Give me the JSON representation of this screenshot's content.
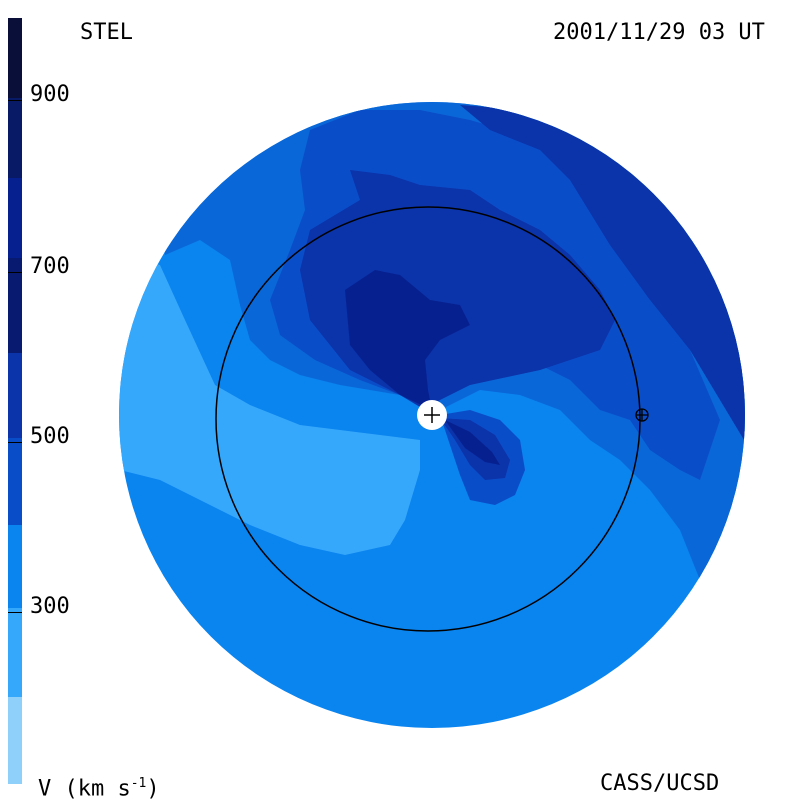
{
  "header": {
    "instrument": "STEL",
    "timestamp": "2001/11/29 03 UT"
  },
  "footer": {
    "unit_label": "V (km s",
    "unit_exp": "-1",
    "unit_close": ")",
    "credit": "CASS/UCSD"
  },
  "colorbar": {
    "ticks": [
      "900",
      "700",
      "500",
      "300"
    ],
    "bands": [
      "#0a0f3a",
      "#081a66",
      "#07208f",
      "#0b33aa",
      "#0a4dc9",
      "#0a67d8",
      "#0a84ef",
      "#36a8fb",
      "#8fd0fb"
    ]
  },
  "map": {
    "colors": {
      "v200": "#8fd0fb",
      "v300": "#36a8fb",
      "v400": "#0a84ef",
      "v450": "#0a67d8",
      "v500": "#0a4dc9",
      "v600": "#0b33aa",
      "v700": "#07208f",
      "v800": "#081a66"
    },
    "markers": [
      "sun-marker",
      "earth-marker"
    ],
    "reference_orbit": "earth-orbit"
  }
}
